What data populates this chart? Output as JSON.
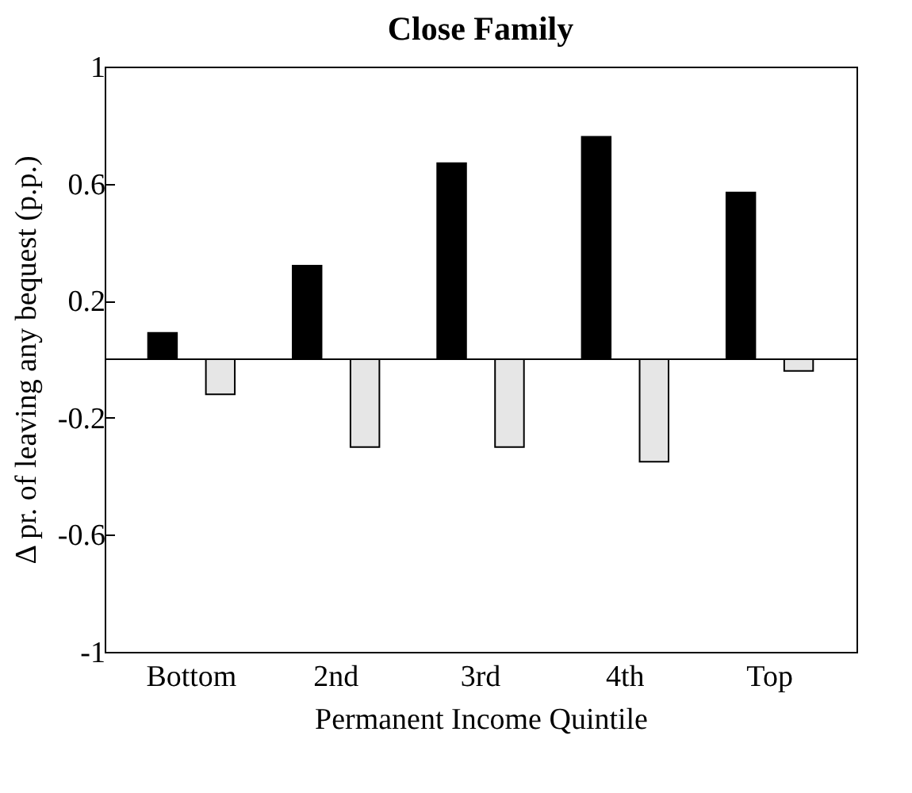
{
  "chart_data": {
    "type": "bar",
    "title": "Close Family",
    "xlabel": "Permanent Income Quintile",
    "ylabel": "Δ pr. of leaving any bequest (p.p.)",
    "categories": [
      "Bottom",
      "2nd",
      "3rd",
      "4th",
      "Top"
    ],
    "series": [
      {
        "color": "#000000",
        "values": [
          0.09,
          0.32,
          0.67,
          0.76,
          0.57
        ]
      },
      {
        "color": "#e6e6e6",
        "values": [
          -0.12,
          -0.3,
          -0.3,
          -0.35,
          -0.04
        ]
      }
    ],
    "ylim": [
      -1,
      1
    ],
    "yticks": [
      -1,
      -0.6,
      -0.2,
      0.2,
      0.6,
      1
    ],
    "grid": false,
    "ref_lines": [
      {
        "axis": "y",
        "value": 0,
        "label": null,
        "color": "#000000"
      }
    ]
  }
}
